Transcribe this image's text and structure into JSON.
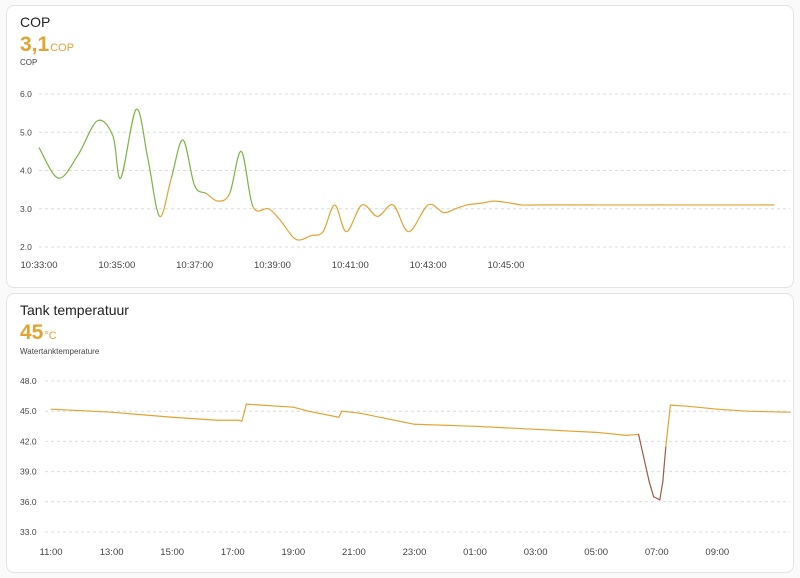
{
  "cards": [
    {
      "title": "COP",
      "value": "3,1",
      "unit": "COP",
      "subtitle": "COP",
      "chart_data": {
        "type": "line",
        "ylabel": "COP",
        "ylim": [
          2.0,
          6.0
        ],
        "yticks": [
          "6.0",
          "5.0",
          "4.0",
          "3.0",
          "2.0"
        ],
        "xticks": [
          "10:33:00",
          "10:35:00",
          "10:37:00",
          "10:39:00",
          "10:41:00",
          "10:43:00",
          "10:45:00"
        ],
        "x_minutes": [
          0,
          0.5,
          1.0,
          1.5,
          1.9,
          2.1,
          2.5,
          2.8,
          3.1,
          3.4,
          3.7,
          4.0,
          4.3,
          4.6,
          4.9,
          5.2,
          5.5,
          5.9,
          6.2,
          6.6,
          7.0,
          7.3,
          7.6,
          7.9,
          8.3,
          8.7,
          9.1,
          9.5,
          10.0,
          10.4,
          10.7,
          11.0,
          11.4,
          11.7,
          12.1,
          12.4,
          12.8,
          13.2,
          13.5,
          13.9,
          14.3,
          14.7,
          15.2,
          15.7,
          16.1,
          16.5,
          17.0,
          17.5,
          18.0,
          18.5,
          18.9
        ],
        "values": [
          4.6,
          3.8,
          4.4,
          5.3,
          4.9,
          3.8,
          5.6,
          4.3,
          2.8,
          3.8,
          4.8,
          3.6,
          3.4,
          3.2,
          3.4,
          4.5,
          3.05,
          3.0,
          2.7,
          2.2,
          2.3,
          2.4,
          3.1,
          2.4,
          3.1,
          2.8,
          3.1,
          2.4,
          3.1,
          2.9,
          3.0,
          3.1,
          3.15,
          3.2,
          3.15,
          3.1,
          3.1,
          3.1,
          3.1,
          3.1,
          3.1,
          3.1,
          3.1,
          3.1,
          3.1,
          3.1,
          3.1,
          3.1,
          3.1,
          3.1,
          3.1
        ],
        "color_high": "#7cb342",
        "color_low": "#e3a333",
        "grid": true
      }
    },
    {
      "title": "Tank temperatuur",
      "value": "45",
      "unit": "°C",
      "subtitle": "Watertanktemperature",
      "chart_data": {
        "type": "line",
        "ylabel": "°C",
        "ylim": [
          33.0,
          48.0
        ],
        "yticks": [
          "48.0",
          "45.0",
          "42.0",
          "39.0",
          "36.0",
          "33.0"
        ],
        "xticks": [
          "11:00",
          "13:00",
          "15:00",
          "17:00",
          "19:00",
          "21:00",
          "23:00",
          "01:00",
          "03:00",
          "05:00",
          "07:00",
          "09:00"
        ],
        "x_hours": [
          0,
          2,
          4,
          5.5,
          6.2,
          6.3,
          6.45,
          8.0,
          8.5,
          9.5,
          9.6,
          10.2,
          12.0,
          14.0,
          16.0,
          18.0,
          19.0,
          19.4,
          19.75,
          19.9,
          20.1,
          20.2,
          20.3,
          20.45,
          21.0,
          22.0,
          23.0,
          24.4
        ],
        "values": [
          45.2,
          44.9,
          44.4,
          44.1,
          44.1,
          44.0,
          45.7,
          45.4,
          45.0,
          44.4,
          45.0,
          44.8,
          43.7,
          43.5,
          43.2,
          42.9,
          42.6,
          42.7,
          38.0,
          36.5,
          36.2,
          38.0,
          41.5,
          45.6,
          45.5,
          45.2,
          45.0,
          44.9
        ],
        "color_normal": "#e3a333",
        "color_cold": "#a05a4a",
        "grid": true
      }
    }
  ]
}
